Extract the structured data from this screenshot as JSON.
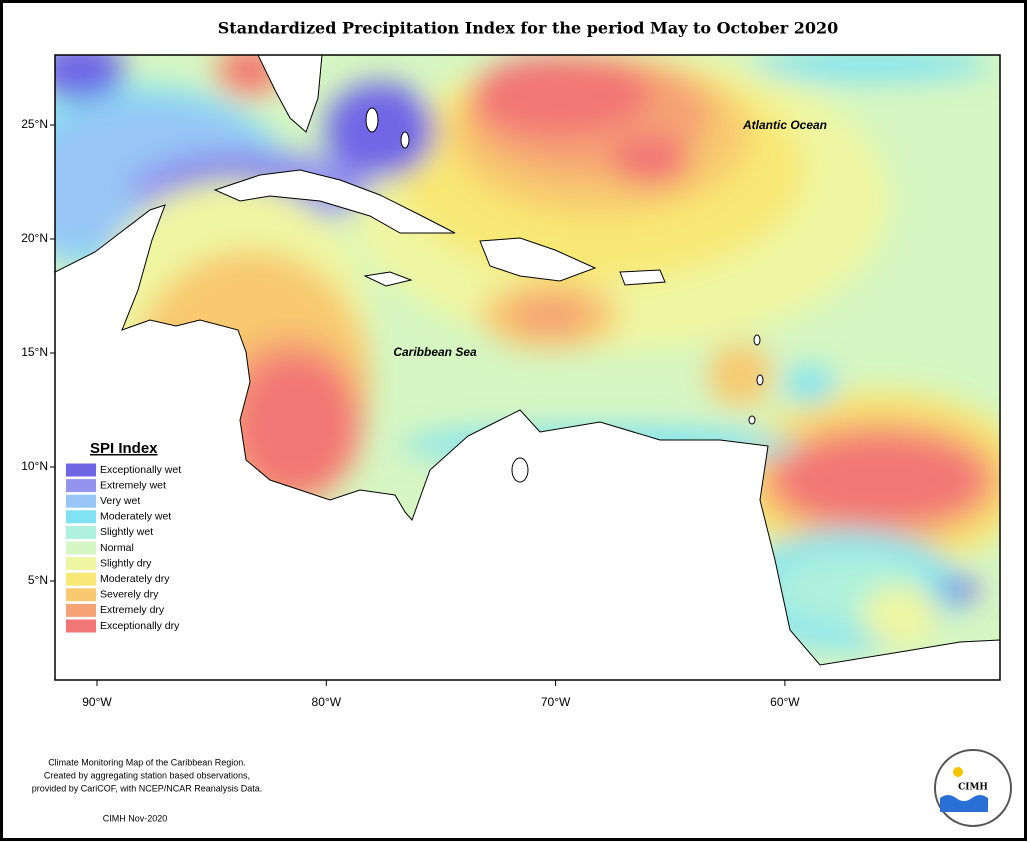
{
  "title": "Standardized Precipitation Index for the period May to October 2020",
  "map_labels": [
    "Atlantic Ocean",
    "Caribbean Sea"
  ],
  "lat_ticks": [
    "25°N",
    "20°N",
    "15°N",
    "10°N",
    "5°N"
  ],
  "lon_ticks": [
    "90°W",
    "80°W",
    "70°W",
    "60°W"
  ],
  "legend": {
    "title": "SPI Index",
    "items": [
      {
        "label": "Exceptionally wet",
        "color": "#6f66e6"
      },
      {
        "label": "Extremely wet",
        "color": "#9494ef"
      },
      {
        "label": "Very wet",
        "color": "#97c6f6"
      },
      {
        "label": "Moderately wet",
        "color": "#80e2f3"
      },
      {
        "label": "Slightly wet",
        "color": "#aef1dc"
      },
      {
        "label": "Normal",
        "color": "#d6f6c3"
      },
      {
        "label": "Slightly dry",
        "color": "#eff6a2"
      },
      {
        "label": "Moderately dry",
        "color": "#f8e875"
      },
      {
        "label": "Severely dry",
        "color": "#f8c970"
      },
      {
        "label": "Extremely dry",
        "color": "#f5a274"
      },
      {
        "label": "Exceptionally dry",
        "color": "#f27676"
      }
    ]
  },
  "footer": {
    "lines": [
      "Climate Monitoring Map of the Caribbean Region.",
      "Created by aggregating station based observations,",
      "provided by CariCOF, with NCEP/NCAR Reanalysis Data."
    ],
    "date": "CIMH Nov-2020"
  },
  "logo": {
    "text": "CIMH"
  }
}
